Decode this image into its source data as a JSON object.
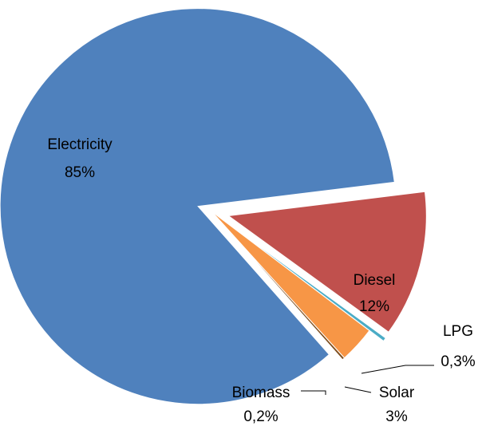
{
  "chart_data": {
    "type": "pie",
    "title": "",
    "legend": "none",
    "slices": [
      {
        "name": "Diesel",
        "value": 12,
        "label": "12%",
        "color": "#C0504D"
      },
      {
        "name": "LPG",
        "value": 0.3,
        "label": "0,3%",
        "color": "#4BACC6"
      },
      {
        "name": "Solar",
        "value": 3,
        "label": "3%",
        "color": "#F79646"
      },
      {
        "name": "Biomass",
        "value": 0.2,
        "label": "0,2%",
        "color": "#7F4F1F"
      },
      {
        "name": "Electricity",
        "value": 85,
        "label": "85%",
        "color": "#4F81BD"
      }
    ]
  }
}
